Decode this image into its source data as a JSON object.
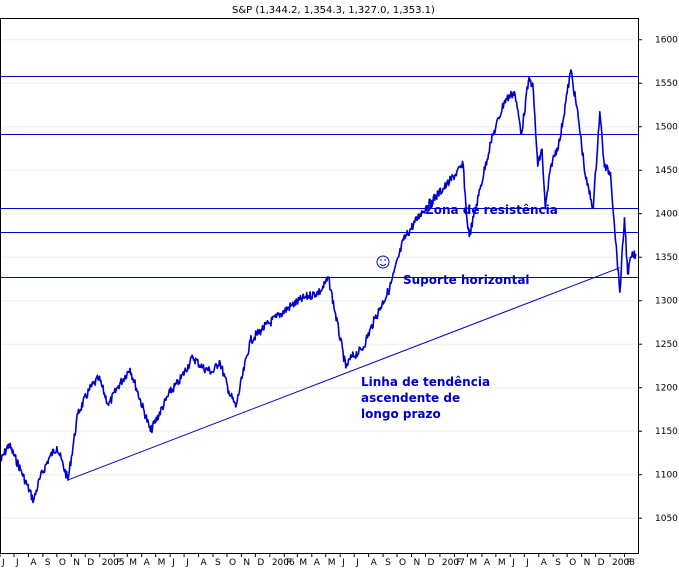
{
  "chart_data": {
    "type": "line",
    "title": "S&P (1,344.2, 1,354.3, 1,327.0, 1,353.1)",
    "colors": {
      "price": "#0000cc",
      "lines": "#0000cc",
      "frame": "#000000",
      "background": "#ffffff"
    },
    "ylim": [
      1010,
      1625
    ],
    "y_ticks": [
      1050,
      1100,
      1150,
      1200,
      1250,
      1300,
      1350,
      1400,
      1450,
      1500,
      1550,
      1600
    ],
    "x_range": [
      "2004-06",
      "2008-03-01"
    ],
    "x_tick_labels": [
      {
        "label": "J",
        "date": "2004-06"
      },
      {
        "label": "J",
        "date": "2004-07"
      },
      {
        "label": "A",
        "date": "2004-08"
      },
      {
        "label": "S",
        "date": "2004-09"
      },
      {
        "label": "O",
        "date": "2004-10"
      },
      {
        "label": "N",
        "date": "2004-11"
      },
      {
        "label": "D",
        "date": "2004-12"
      },
      {
        "label": "2005",
        "date": "2005-01"
      },
      {
        "label": "F",
        "date": "2005-02"
      },
      {
        "label": "M",
        "date": "2005-03"
      },
      {
        "label": "A",
        "date": "2005-04"
      },
      {
        "label": "M",
        "date": "2005-05"
      },
      {
        "label": "J",
        "date": "2005-06"
      },
      {
        "label": "J",
        "date": "2005-07"
      },
      {
        "label": "A",
        "date": "2005-08"
      },
      {
        "label": "S",
        "date": "2005-09"
      },
      {
        "label": "O",
        "date": "2005-10"
      },
      {
        "label": "N",
        "date": "2005-11"
      },
      {
        "label": "D",
        "date": "2005-12"
      },
      {
        "label": "2006",
        "date": "2006-01"
      },
      {
        "label": "F",
        "date": "2006-02"
      },
      {
        "label": "M",
        "date": "2006-03"
      },
      {
        "label": "A",
        "date": "2006-04"
      },
      {
        "label": "M",
        "date": "2006-05"
      },
      {
        "label": "J",
        "date": "2006-06"
      },
      {
        "label": "J",
        "date": "2006-07"
      },
      {
        "label": "A",
        "date": "2006-08"
      },
      {
        "label": "S",
        "date": "2006-09"
      },
      {
        "label": "O",
        "date": "2006-10"
      },
      {
        "label": "N",
        "date": "2006-11"
      },
      {
        "label": "D",
        "date": "2006-12"
      },
      {
        "label": "2007",
        "date": "2007-01"
      },
      {
        "label": "F",
        "date": "2007-02"
      },
      {
        "label": "M",
        "date": "2007-03"
      },
      {
        "label": "A",
        "date": "2007-04"
      },
      {
        "label": "M",
        "date": "2007-05"
      },
      {
        "label": "J",
        "date": "2007-06"
      },
      {
        "label": "J",
        "date": "2007-07"
      },
      {
        "label": "A",
        "date": "2007-08"
      },
      {
        "label": "S",
        "date": "2007-09"
      },
      {
        "label": "O",
        "date": "2007-10"
      },
      {
        "label": "N",
        "date": "2007-11"
      },
      {
        "label": "D",
        "date": "2007-12"
      },
      {
        "label": "2008",
        "date": "2008-01"
      },
      {
        "label": "F",
        "date": "2008-02"
      }
    ],
    "horizontal_levels": [
      1558,
      1492,
      1407,
      1379,
      1327
    ],
    "trendline": {
      "start": {
        "x": "2004-10-25",
        "y": 1094
      },
      "end": {
        "x": "2008-01-22",
        "y": 1338
      }
    },
    "price_series": {
      "name": "S&P",
      "x": [
        "2004-06-01",
        "2004-06-20",
        "2004-07-15",
        "2004-08-12",
        "2004-08-25",
        "2004-09-15",
        "2004-10-01",
        "2004-10-25",
        "2004-11-15",
        "2004-12-10",
        "2004-12-30",
        "2005-01-20",
        "2005-02-10",
        "2005-03-07",
        "2005-04-20",
        "2005-06-01",
        "2005-06-20",
        "2005-07-20",
        "2005-08-10",
        "2005-09-01",
        "2005-09-15",
        "2005-10-05",
        "2005-10-20",
        "2005-11-20",
        "2005-12-15",
        "2006-01-15",
        "2006-02-15",
        "2006-03-15",
        "2006-04-20",
        "2006-05-07",
        "2006-06-13",
        "2006-06-25",
        "2006-07-18",
        "2006-08-15",
        "2006-09-15",
        "2006-10-15",
        "2006-11-20",
        "2006-12-15",
        "2007-01-15",
        "2007-02-20",
        "2007-02-27",
        "2007-03-05",
        "2007-03-25",
        "2007-04-20",
        "2007-05-20",
        "2007-06-10",
        "2007-06-25",
        "2007-07-10",
        "2007-07-19",
        "2007-07-30",
        "2007-08-08",
        "2007-08-15",
        "2007-08-28",
        "2007-09-15",
        "2007-10-01",
        "2007-10-09",
        "2007-10-25",
        "2007-11-10",
        "2007-11-26",
        "2007-12-10",
        "2007-12-20",
        "2008-01-02",
        "2008-01-10",
        "2008-01-22",
        "2008-02-01",
        "2008-02-08",
        "2008-02-15",
        "2008-02-25"
      ],
      "y": [
        1114,
        1135,
        1106,
        1070,
        1095,
        1120,
        1132,
        1094,
        1170,
        1198,
        1211,
        1180,
        1202,
        1222,
        1150,
        1195,
        1207,
        1235,
        1223,
        1218,
        1231,
        1196,
        1178,
        1254,
        1267,
        1281,
        1294,
        1303,
        1311,
        1326,
        1223,
        1235,
        1244,
        1280,
        1314,
        1370,
        1400,
        1415,
        1433,
        1456,
        1399,
        1374,
        1421,
        1482,
        1530,
        1540,
        1492,
        1553,
        1550,
        1455,
        1474,
        1406,
        1457,
        1484,
        1539,
        1565,
        1510,
        1440,
        1407,
        1517,
        1454,
        1447,
        1391,
        1310,
        1395,
        1331,
        1350,
        1353
      ]
    }
  },
  "annotations": {
    "zona": "Zona de resistência",
    "suporte": "Suporte horizontal",
    "linha1": "Linha de tendência",
    "linha2": "ascendente de",
    "linha3": "longo prazo"
  }
}
